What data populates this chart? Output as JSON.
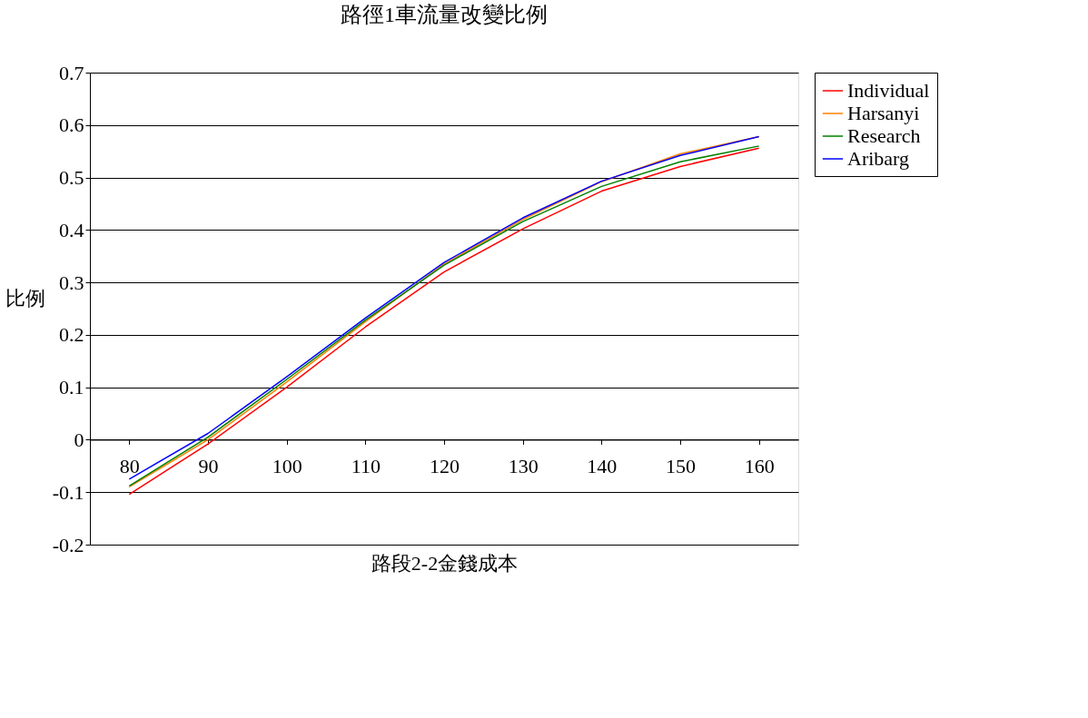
{
  "chart_data": {
    "type": "line",
    "title": "路徑1車流量改變比例",
    "xlabel": "路段2-2金錢成本",
    "ylabel": "比例",
    "categories": [
      "80",
      "90",
      "100",
      "110",
      "120",
      "130",
      "140",
      "150",
      "160"
    ],
    "series": [
      {
        "name": "Individual",
        "color": "#ff0000",
        "values": [
          -0.104,
          -0.008,
          0.1,
          0.215,
          0.32,
          0.402,
          0.474,
          0.521,
          0.556
        ]
      },
      {
        "name": "Harsanyi",
        "color": "#ff8000",
        "values": [
          -0.09,
          0.0,
          0.11,
          0.225,
          0.335,
          0.42,
          0.492,
          0.545,
          0.578
        ]
      },
      {
        "name": "Research",
        "color": "#008000",
        "values": [
          -0.088,
          0.005,
          0.115,
          0.228,
          0.333,
          0.416,
          0.483,
          0.53,
          0.56
        ]
      },
      {
        "name": "Aribarg",
        "color": "#0000ff",
        "values": [
          -0.075,
          0.012,
          0.12,
          0.232,
          0.338,
          0.423,
          0.493,
          0.542,
          0.578
        ]
      }
    ],
    "ylim": [
      -0.2,
      0.7
    ],
    "yticks": [
      -0.2,
      -0.1,
      0,
      0.1,
      0.2,
      0.3,
      0.4,
      0.5,
      0.6,
      0.7
    ],
    "grid": "y",
    "legend": "right",
    "marker": "none",
    "line_style": "solid"
  }
}
